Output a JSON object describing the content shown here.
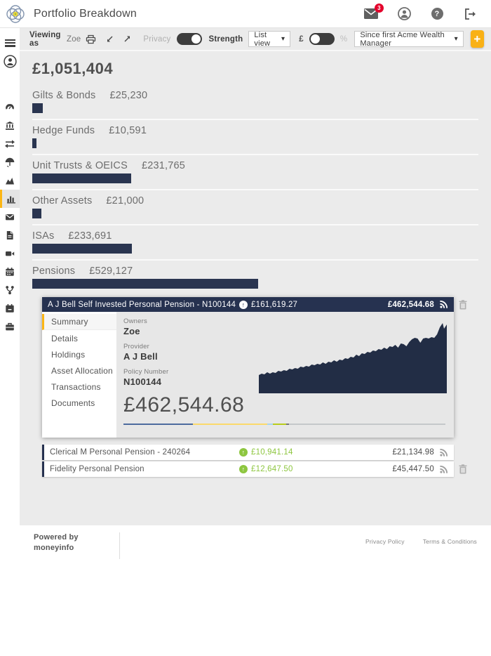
{
  "header": {
    "title": "Portfolio Breakdown",
    "mail_badge": "3",
    "icons": [
      "mail-icon",
      "profile-icon",
      "help-icon",
      "logout-icon"
    ]
  },
  "sidebar": {
    "icons": [
      "menu-icon",
      "profile-icon",
      "gauge-icon",
      "bank-icon",
      "transfers-icon",
      "insurance-icon",
      "performance-icon",
      "portfolio-chart-icon",
      "messages-icon",
      "documents-icon",
      "video-icon",
      "calendar-icon",
      "planning-icon",
      "schedule-icon",
      "business-icon"
    ],
    "active_icon": "portfolio-chart-icon"
  },
  "toolbar": {
    "viewing_as_label": "Viewing as",
    "viewing_as_name": "Zoe",
    "privacy_label": "Privacy",
    "strength_label": "Strength",
    "view_select": "List view",
    "currency_label": "£",
    "percent_label": "%",
    "period_select": "Since first Acme Wealth Manager",
    "add_label": "+"
  },
  "portfolio": {
    "total": "£1,051,404",
    "categories": [
      {
        "label": "Gilts & Bonds",
        "amount": "£25,230",
        "value": 25230
      },
      {
        "label": "Hedge Funds",
        "amount": "£10,591",
        "value": 10591
      },
      {
        "label": "Unit Trusts & OEICS",
        "amount": "£231,765",
        "value": 231765
      },
      {
        "label": "Other Assets",
        "amount": "£21,000",
        "value": 21000
      },
      {
        "label": "ISAs",
        "amount": "£233,691",
        "value": 233691
      },
      {
        "label": "Pensions",
        "amount": "£529,127",
        "value": 529127
      }
    ]
  },
  "expanded_account": {
    "title": "A J Bell Self Invested Personal Pension - N100144",
    "gain": "£161,619.27",
    "value": "£462,544.68",
    "tabs": [
      "Summary",
      "Details",
      "Holdings",
      "Asset Allocation",
      "Transactions",
      "Documents"
    ],
    "active_tab": "Summary",
    "fields": [
      {
        "label": "Owners",
        "value": "Zoe"
      },
      {
        "label": "Provider",
        "value": "A J Bell"
      },
      {
        "label": "Policy Number",
        "value": "N100144"
      }
    ],
    "big_value": "£462,544.68",
    "allocation_segments": [
      {
        "color": "#4d6b9e",
        "pct": 21.5
      },
      {
        "color": "#fbd96b",
        "pct": 23.2
      },
      {
        "color": "#a6d5ef",
        "pct": 1.7
      },
      {
        "color": "#b8cc1c",
        "pct": 4.2
      },
      {
        "color": "#777777",
        "pct": 0.8
      },
      {
        "color": "#c5c8ca",
        "pct": 48.6
      }
    ]
  },
  "accounts": [
    {
      "title": "Clerical M Personal Pension - 240264",
      "gain": "£10,941.14",
      "value": "£21,134.98"
    },
    {
      "title": "Fidelity Personal Pension",
      "gain": "£12,647.50",
      "value": "£45,447.50"
    }
  ],
  "footer": {
    "powered_by_line1": "Powered by",
    "powered_by_line2": "moneyinfo",
    "links": [
      "Privacy Policy",
      "Terms & Conditions"
    ]
  },
  "colors": {
    "accent_yellow": "#f9b115",
    "navy": "#263250",
    "gain_green": "#8dc63f",
    "badge_red": "#e4002b",
    "page_gray": "#ebebeb"
  }
}
